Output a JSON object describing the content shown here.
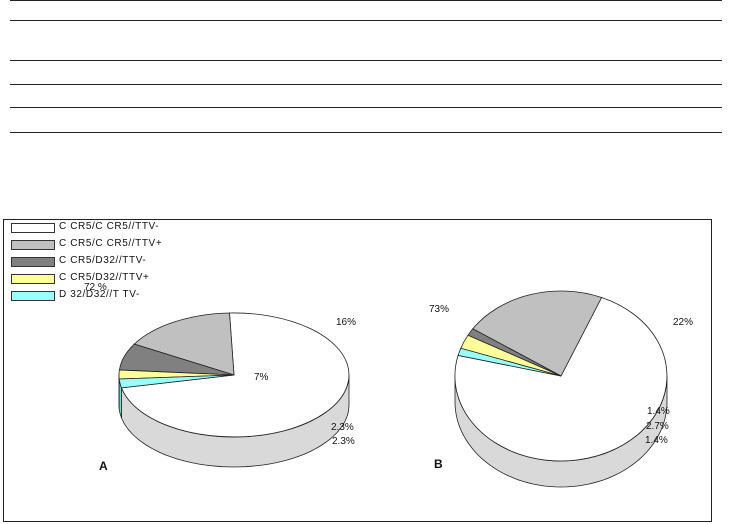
{
  "chart_data": [
    {
      "type": "pie",
      "panel_label": "A",
      "legend": [
        {
          "label": "C CR5/C CR5//TTV-",
          "color": "#ffffff"
        },
        {
          "label": "C CR5/C CR5//TTV+",
          "color": "#c0c0c0"
        },
        {
          "label": "C CR5/D32//TTV-",
          "color": "#808080"
        },
        {
          "label": "C CR5/D32//TTV+",
          "color": "#ffff99"
        },
        {
          "label": "D 32/D32//T TV-",
          "color": "#99ffff"
        }
      ],
      "slices": [
        {
          "name": "C CR5/C CR5//TTV-",
          "value": 72,
          "label": "72 %",
          "color": "#ffffff"
        },
        {
          "name": "C CR5/C CR5//TTV+",
          "value": 16,
          "label": "16%",
          "color": "#c0c0c0"
        },
        {
          "name": "C CR5/D32//TTV-",
          "value": 7,
          "label": "7%",
          "color": "#808080"
        },
        {
          "name": "C CR5/D32//TTV+",
          "value": 2.3,
          "label": "2.3%",
          "color": "#ffff99"
        },
        {
          "name": "D 32/D32//T TV-",
          "value": 2.3,
          "label": "2.3%",
          "color": "#99ffff"
        }
      ]
    },
    {
      "type": "pie",
      "panel_label": "B",
      "slices": [
        {
          "name": "C CR5/C CR5//TTV-",
          "value": 73,
          "label": "73%",
          "color": "#ffffff"
        },
        {
          "name": "C CR5/C CR5//TTV+",
          "value": 22,
          "label": "22%",
          "color": "#c0c0c0"
        },
        {
          "name": "C CR5/D32//TTV-",
          "value": 1.4,
          "label": "1.4%",
          "color": "#808080"
        },
        {
          "name": "C CR5/D32//TTV+",
          "value": 2.7,
          "label": "2.7%",
          "color": "#ffff99"
        },
        {
          "name": "D 32/D32//T TV-",
          "value": 1.4,
          "label": "1.4%",
          "color": "#99ffff"
        }
      ]
    }
  ]
}
